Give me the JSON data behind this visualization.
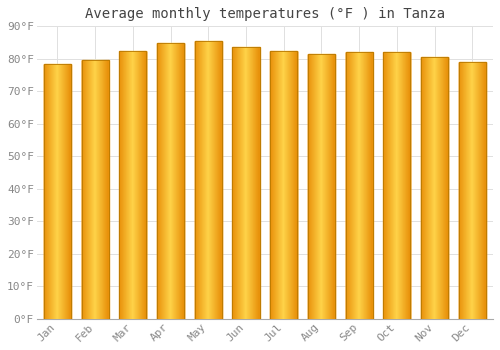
{
  "title": "Average monthly temperatures (°F ) in Tanza",
  "months": [
    "Jan",
    "Feb",
    "Mar",
    "Apr",
    "May",
    "Jun",
    "Jul",
    "Aug",
    "Sep",
    "Oct",
    "Nov",
    "Dec"
  ],
  "values": [
    78.5,
    79.5,
    82.5,
    85.0,
    85.5,
    83.5,
    82.5,
    81.5,
    82.0,
    82.0,
    80.5,
    79.0
  ],
  "ylim": [
    0,
    90
  ],
  "yticks": [
    0,
    10,
    20,
    30,
    40,
    50,
    60,
    70,
    80,
    90
  ],
  "ytick_labels": [
    "0°F",
    "10°F",
    "20°F",
    "30°F",
    "40°F",
    "50°F",
    "60°F",
    "70°F",
    "80°F",
    "90°F"
  ],
  "bar_color_left": "#E8900A",
  "bar_color_center": "#FFD44A",
  "bar_color_right": "#E8900A",
  "bar_edge_color": "#B87800",
  "background_color": "#FFFFFF",
  "grid_color": "#E0E0E0",
  "title_fontsize": 10,
  "tick_fontsize": 8,
  "title_color": "#444444",
  "tick_color": "#888888",
  "font_family": "monospace"
}
